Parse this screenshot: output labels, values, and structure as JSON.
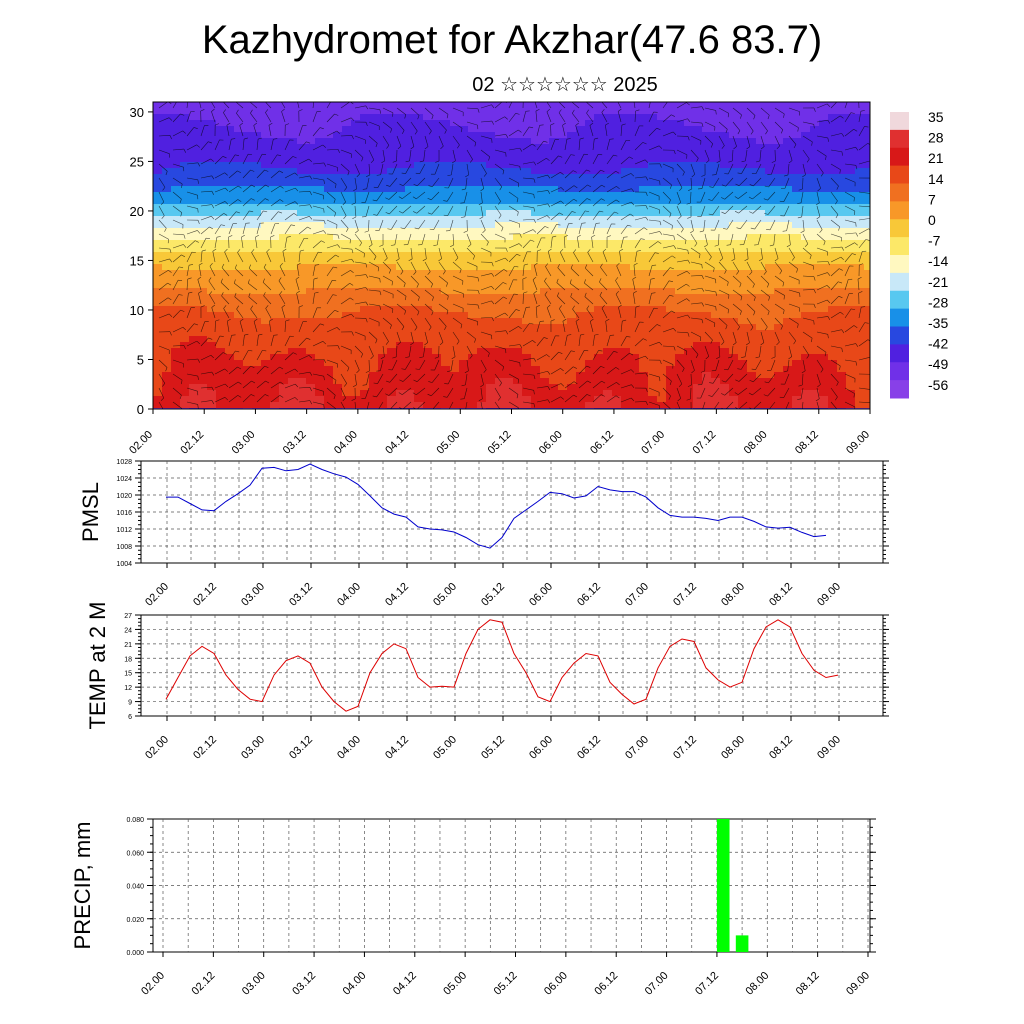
{
  "header": {
    "title": "Kazhydromet for Akzhar(47.6 83.7)",
    "subtitle": "02 ☆☆☆☆☆☆ 2025"
  },
  "time_ticks": [
    "02.00",
    "02.12",
    "03.00",
    "03.12",
    "04.00",
    "04.12",
    "05.00",
    "05.12",
    "06.00",
    "06.12",
    "07.00",
    "07.12",
    "08.00",
    "08.12",
    "09.00"
  ],
  "chart_data": [
    {
      "type": "heatmap",
      "name": "temperature cross-section with wind barbs",
      "y_ticks": [
        0,
        5,
        10,
        15,
        20,
        25,
        30
      ],
      "ylim": [
        0,
        31
      ],
      "x": [
        "02.00",
        "09.00"
      ],
      "colorbar": {
        "labels": [
          "35",
          "28",
          "21",
          "14",
          "7",
          "0",
          "-7",
          "-14",
          "-21",
          "-28",
          "-35",
          "-42",
          "-49",
          "-56"
        ],
        "colors": [
          "#f0d8dc",
          "#e03030",
          "#d81818",
          "#e84818",
          "#f07020",
          "#f89828",
          "#f8c838",
          "#fce868",
          "#fff8c0",
          "#c8e8f8",
          "#58c8f0",
          "#1890e8",
          "#2848e0",
          "#5020e0",
          "#7030e8",
          "#8840e8"
        ]
      },
      "profile": [
        {
          "h": 0,
          "t": 24
        },
        {
          "h": 5,
          "t": 18
        },
        {
          "h": 10,
          "t": 10
        },
        {
          "h": 15,
          "t": -6
        },
        {
          "h": 18,
          "t": -22
        },
        {
          "h": 21,
          "t": -40
        },
        {
          "h": 24,
          "t": -52
        },
        {
          "h": 27,
          "t": -58
        },
        {
          "h": 31,
          "t": -62
        }
      ]
    },
    {
      "type": "line",
      "ylabel": "PMSL",
      "y_ticks": [
        1004,
        1008,
        1012,
        1016,
        1020,
        1024,
        1028
      ],
      "ylim": [
        1004,
        1028
      ],
      "color": "#0000cc",
      "series": [
        {
          "values": [
            1019.5,
            1019.5,
            1018,
            1016.5,
            1016.3,
            1018.5,
            1020.3,
            1022.3,
            1026.3,
            1026.5,
            1025.7,
            1026,
            1027.3,
            1026,
            1025,
            1024.2,
            1022.5,
            1019.8,
            1017,
            1015.5,
            1014.8,
            1012.5,
            1012,
            1011.8,
            1011.3,
            1010,
            1008.3,
            1007.5,
            1010,
            1014.5,
            1016.5,
            1018.5,
            1020.6,
            1020.3,
            1019.3,
            1019.8,
            1022,
            1021.2,
            1020.8,
            1020.8,
            1019.5,
            1017,
            1015.2,
            1014.8,
            1014.8,
            1014.5,
            1014,
            1014.8,
            1014.8,
            1013.8,
            1012.5,
            1012.2,
            1012.4,
            1011.2,
            1010.2,
            1010.5
          ]
        }
      ]
    },
    {
      "type": "line",
      "ylabel": "TEMP at 2 M",
      "y_ticks": [
        6,
        9,
        12,
        15,
        18,
        21,
        24,
        27
      ],
      "ylim": [
        6,
        27
      ],
      "color": "#dd0000",
      "series": [
        {
          "values": [
            9.5,
            14,
            18.5,
            20.5,
            19,
            14.5,
            11.5,
            9.5,
            9,
            14.5,
            17.5,
            18.5,
            17,
            12,
            9,
            7,
            8,
            15,
            19,
            21,
            20,
            14,
            12,
            12.2,
            12,
            19,
            24,
            26,
            25.5,
            19,
            15,
            10,
            9,
            14,
            17,
            19,
            18.5,
            13,
            10.5,
            8.5,
            9.5,
            16,
            20.5,
            22,
            21.5,
            16,
            13.5,
            12,
            13,
            20,
            24.5,
            26,
            24.5,
            19,
            15.5,
            14,
            14.5
          ]
        }
      ]
    },
    {
      "type": "bar",
      "ylabel": "PRECIP, mm",
      "y_ticks": [
        "0.000",
        "0.020",
        "0.040",
        "0.060",
        "0.080"
      ],
      "ylim": [
        0,
        0.08
      ],
      "color": "#00ff00",
      "bars": [
        {
          "x": 44.5,
          "value": 0.08
        },
        {
          "x": 46.0,
          "value": 0.01
        }
      ]
    }
  ]
}
